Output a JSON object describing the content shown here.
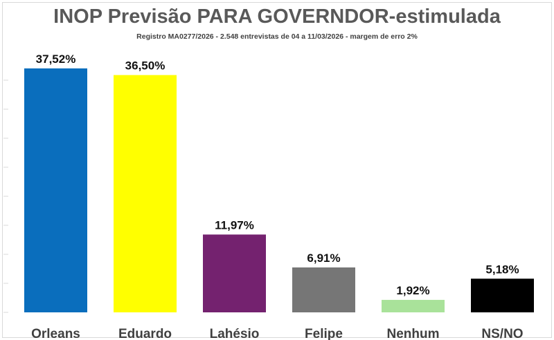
{
  "chart_data": {
    "type": "bar",
    "title": "INOP Previsão PARA GOVERNDOR-estimulada",
    "subtitle": "Registro MA0277/2026 - 2.548 entrevistas de 04 a 11/03/2026 - margem de erro 2%",
    "categories": [
      "Orleans",
      "Eduardo",
      "Lahésio",
      "Felipe",
      "Nenhum",
      "NS/NO"
    ],
    "values": [
      37.52,
      36.5,
      11.97,
      6.91,
      1.92,
      5.18
    ],
    "value_labels": [
      "37,52%",
      "36,50%",
      "11,97%",
      "6,91%",
      "1,92%",
      "5,18%"
    ],
    "colors": [
      "#0a6ebd",
      "#ffff00",
      "#74226f",
      "#767676",
      "#a9e29a",
      "#000000"
    ],
    "ylim": [
      0,
      40
    ],
    "grid": false,
    "legend": "none"
  }
}
